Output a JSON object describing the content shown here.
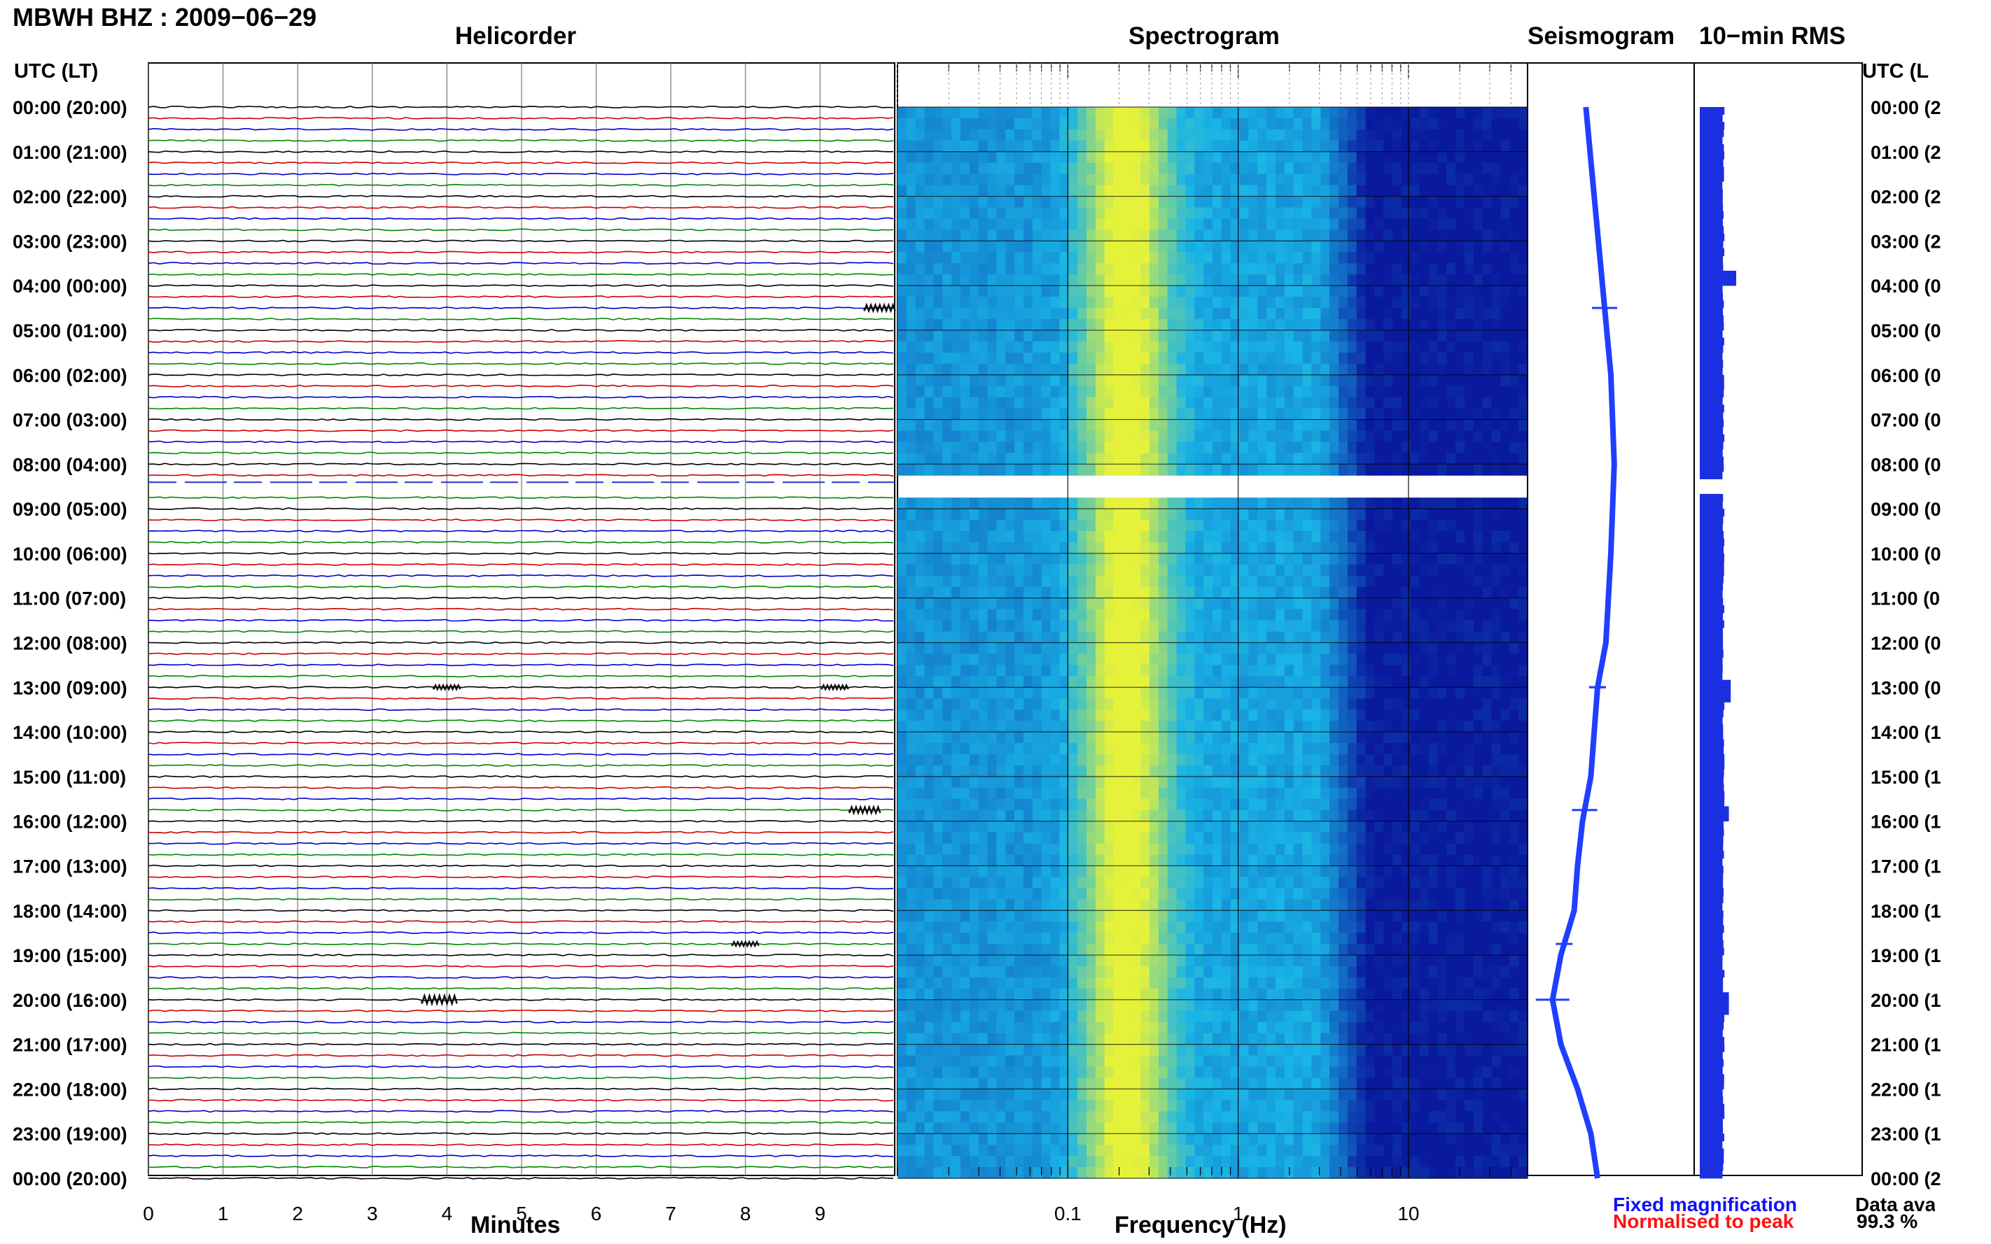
{
  "header": {
    "station_title": "MBWH BHZ : 2009−06−29",
    "panel_titles": {
      "helicorder": "Helicorder",
      "spectrogram": "Spectrogram",
      "seismogram": "Seismogram",
      "rms": "10−min RMS"
    },
    "utc_label_left": "UTC (LT)",
    "utc_label_right": "UTC (L"
  },
  "axes": {
    "xlabel_minutes": "Minutes",
    "xlabel_frequency": "Frequency (Hz)"
  },
  "legend": {
    "fixed": "Fixed magnification",
    "normalised": "Normalised to peak"
  },
  "data_availability": {
    "label": "Data ava",
    "value": "99.3 %"
  },
  "colors": {
    "trace_cycle": [
      "#000000",
      "#cc0000",
      "#0000cc",
      "#008800"
    ],
    "seismogram": "#1f3fff",
    "rms": "#1a2fe0",
    "spectrogram_high": "#e6f23a",
    "spectrogram_mid": "#19b4e6",
    "spectrogram_low": "#0a1a9e"
  },
  "chart_data": [
    {
      "type": "line",
      "name": "helicorder",
      "title": "Helicorder",
      "xlabel": "Minutes",
      "xlim": [
        0,
        10
      ],
      "x_ticks": [
        0,
        1,
        2,
        3,
        4,
        5,
        6,
        7,
        8,
        9
      ],
      "rows_per_hour": 4,
      "y_tick_labels_left": [
        "00:00 (20:00)",
        "01:00 (21:00)",
        "02:00 (22:00)",
        "03:00 (23:00)",
        "04:00 (00:00)",
        "05:00 (01:00)",
        "06:00 (02:00)",
        "07:00 (03:00)",
        "08:00 (04:00)",
        "09:00 (05:00)",
        "10:00 (06:00)",
        "11:00 (07:00)",
        "12:00 (08:00)",
        "13:00 (09:00)",
        "14:00 (10:00)",
        "15:00 (11:00)",
        "16:00 (12:00)",
        "17:00 (13:00)",
        "18:00 (14:00)",
        "19:00 (15:00)",
        "20:00 (16:00)",
        "21:00 (17:00)",
        "22:00 (18:00)",
        "23:00 (19:00)",
        "00:00 (20:00)"
      ],
      "y_tick_labels_right": [
        "00:00 (2",
        "01:00 (2",
        "02:00 (2",
        "03:00 (2",
        "04:00 (0",
        "05:00 (0",
        "06:00 (0",
        "07:00 (0",
        "08:00 (0",
        "09:00 (0",
        "10:00 (0",
        "11:00 (0",
        "12:00 (0",
        "13:00 (0",
        "14:00 (1",
        "15:00 (1",
        "16:00 (1",
        "17:00 (1",
        "18:00 (1",
        "19:00 (1",
        "20:00 (1",
        "21:00 (1",
        "22:00 (1",
        "23:00 (1",
        "00:00 (2"
      ],
      "events": [
        {
          "hour": 4.5,
          "minute": 9.8,
          "amplitude": 3
        },
        {
          "hour": 13.0,
          "minute": 4.0,
          "amplitude": 2
        },
        {
          "hour": 13.0,
          "minute": 9.2,
          "amplitude": 2
        },
        {
          "hour": 15.75,
          "minute": 9.6,
          "amplitude": 3
        },
        {
          "hour": 18.75,
          "minute": 8.0,
          "amplitude": 2
        },
        {
          "hour": 20.0,
          "minute": 3.9,
          "amplitude": 4
        }
      ],
      "data_gap": {
        "hour_start": 8.25,
        "hour_end": 8.75
      }
    },
    {
      "type": "heatmap",
      "name": "spectrogram",
      "title": "Spectrogram",
      "xlabel": "Frequency (Hz)",
      "x_scale": "log",
      "xlim": [
        0.01,
        50
      ],
      "x_tick_labels": [
        "0.1",
        "1",
        "10"
      ],
      "x_ticks": [
        0.1,
        1,
        10
      ],
      "peak_frequency_hz": 0.22,
      "noise_floor_above_hz": 3,
      "colormap": [
        "#0a1a9e",
        "#19b4e6",
        "#e6f23a"
      ],
      "data_gap": {
        "hour_start": 8.25,
        "hour_end": 8.75
      }
    },
    {
      "type": "line",
      "name": "seismogram",
      "title": "Seismogram",
      "hours": [
        0,
        2,
        4,
        6,
        8,
        10,
        12,
        13,
        14,
        15,
        16,
        17,
        18,
        19,
        20,
        21,
        22,
        23,
        24
      ],
      "relative_offset": [
        0.35,
        0.4,
        0.45,
        0.5,
        0.52,
        0.5,
        0.47,
        0.42,
        0.4,
        0.38,
        0.33,
        0.3,
        0.28,
        0.2,
        0.15,
        0.2,
        0.3,
        0.38,
        0.42
      ]
    },
    {
      "type": "bar",
      "name": "rms",
      "title": "10−min RMS",
      "note": "one bar per 10 minutes, 144 bars",
      "peaks": [
        {
          "hour": 3.75,
          "relative_level": 1.0
        },
        {
          "hour": 13.0,
          "relative_level": 0.85
        },
        {
          "hour": 15.75,
          "relative_level": 0.8
        },
        {
          "hour": 20.0,
          "relative_level": 0.8
        }
      ],
      "baseline_relative_level": 0.65
    }
  ]
}
